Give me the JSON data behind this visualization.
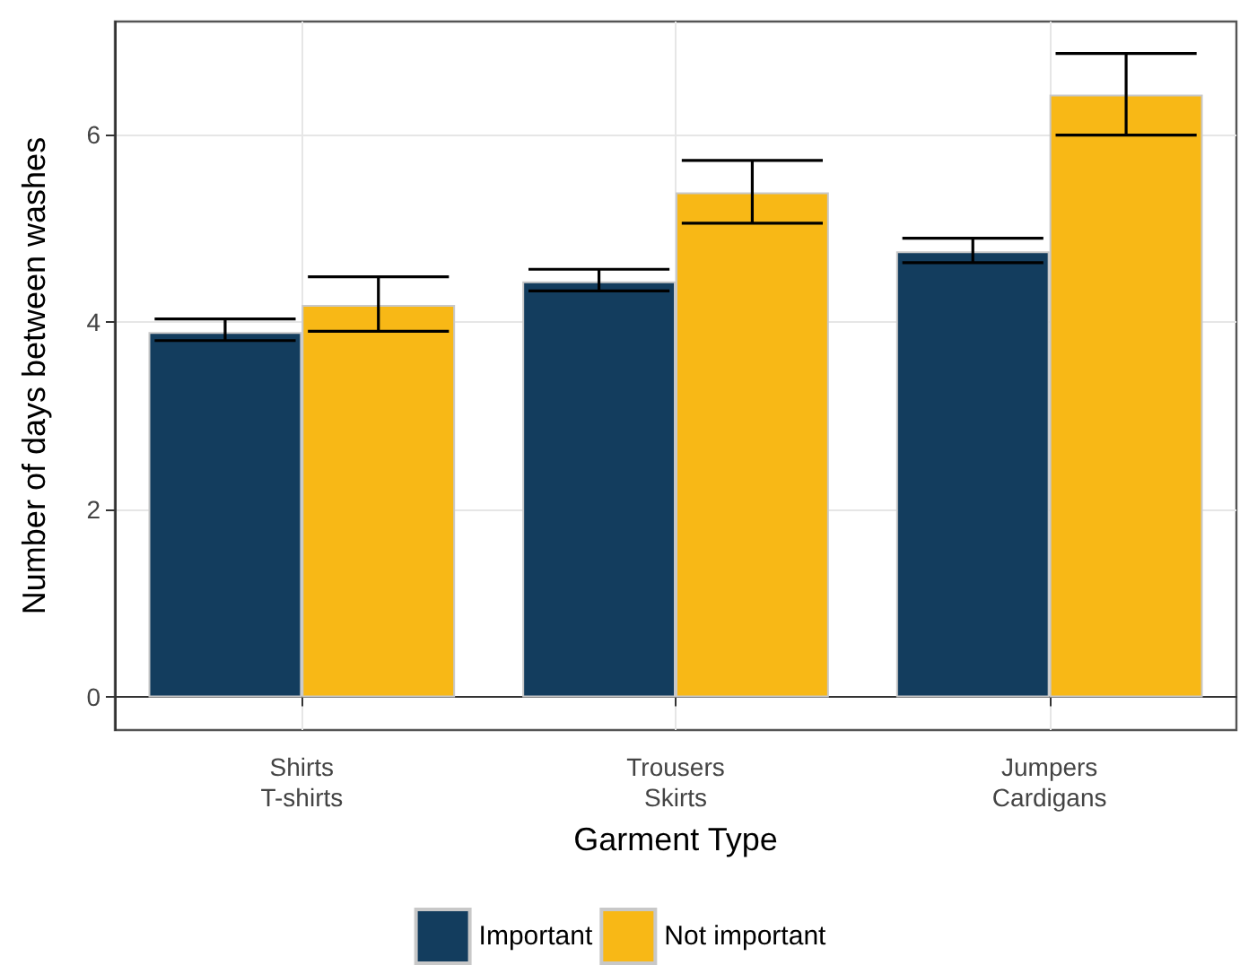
{
  "chart_data": {
    "type": "bar",
    "xlabel": "Garment Type",
    "ylabel": "Number of days between washes",
    "categories": [
      "Shirts\nT-shirts",
      "Trousers\nSkirts",
      "Jumpers\nCardigans"
    ],
    "series": [
      {
        "name": "Important",
        "color": "#133d5e",
        "values": [
          3.89,
          4.43,
          4.75
        ],
        "errors": [
          [
            3.8,
            4.03
          ],
          [
            4.33,
            4.56
          ],
          [
            4.63,
            4.89
          ]
        ]
      },
      {
        "name": "Not important",
        "color": "#f8b816",
        "values": [
          4.18,
          5.38,
          6.42
        ],
        "errors": [
          [
            3.9,
            4.48
          ],
          [
            5.05,
            5.72
          ],
          [
            5.99,
            6.86
          ]
        ]
      }
    ],
    "ylim": [
      -0.35,
      7.2
    ],
    "yticks": [
      0,
      2,
      4,
      6
    ],
    "grid": true,
    "legend": "bottom"
  }
}
